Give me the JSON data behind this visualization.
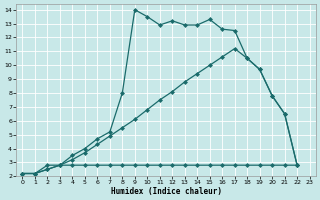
{
  "xlabel": "Humidex (Indice chaleur)",
  "bg_color": "#c8e8e8",
  "line_color": "#1a6b6b",
  "xlim": [
    -0.5,
    23.5
  ],
  "ylim": [
    2.0,
    14.4
  ],
  "xticks": [
    0,
    1,
    2,
    3,
    4,
    5,
    6,
    7,
    8,
    9,
    10,
    11,
    12,
    13,
    14,
    15,
    16,
    17,
    18,
    19,
    20,
    21,
    22,
    23
  ],
  "yticks": [
    2,
    3,
    4,
    5,
    6,
    7,
    8,
    9,
    10,
    11,
    12,
    13,
    14
  ],
  "line1_x": [
    0,
    1,
    2,
    3,
    4,
    5,
    6,
    7,
    8,
    9,
    10,
    11,
    12,
    13,
    14,
    15,
    16,
    17,
    18,
    19,
    20,
    21,
    22
  ],
  "line1_y": [
    2.2,
    2.2,
    2.5,
    2.8,
    3.5,
    4.0,
    4.7,
    5.2,
    8.0,
    14.0,
    13.5,
    12.9,
    13.2,
    12.9,
    12.9,
    13.3,
    12.6,
    12.5,
    10.5,
    9.7,
    7.8,
    6.5,
    2.8
  ],
  "line2_x": [
    0,
    1,
    2,
    3,
    4,
    5,
    6,
    7,
    8,
    9,
    10,
    11,
    12,
    13,
    14,
    15,
    16,
    17,
    18,
    19,
    20,
    21,
    22
  ],
  "line2_y": [
    2.2,
    2.2,
    2.5,
    2.8,
    3.2,
    3.7,
    4.3,
    4.9,
    5.5,
    6.1,
    6.8,
    7.5,
    8.1,
    8.8,
    9.4,
    10.0,
    10.6,
    11.2,
    10.5,
    9.7,
    7.8,
    6.5,
    2.8
  ],
  "line3_x": [
    0,
    1,
    2,
    3,
    4,
    5,
    6,
    7,
    8,
    9,
    10,
    11,
    12,
    13,
    14,
    15,
    16,
    17,
    18,
    19,
    20,
    21,
    22
  ],
  "line3_y": [
    2.2,
    2.2,
    2.8,
    2.8,
    2.8,
    2.8,
    2.8,
    2.8,
    2.8,
    2.8,
    2.8,
    2.8,
    2.8,
    2.8,
    2.8,
    2.8,
    2.8,
    2.8,
    2.8,
    2.8,
    2.8,
    2.8,
    2.8
  ]
}
